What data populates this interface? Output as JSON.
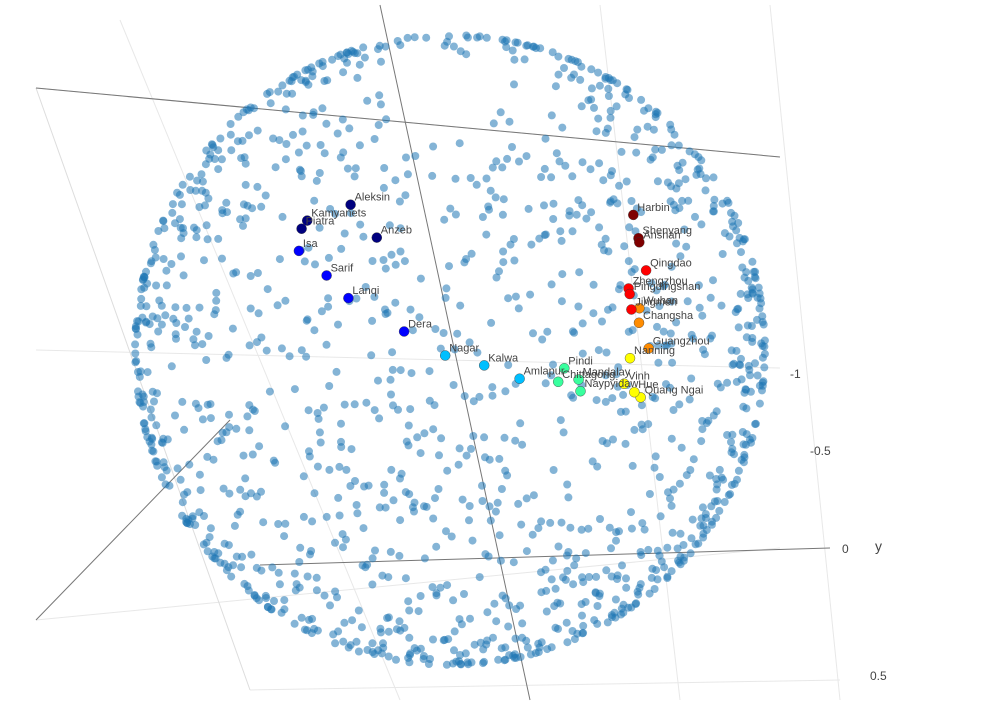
{
  "chart_data": {
    "type": "scatter",
    "title": "",
    "projection": "3d-sphere",
    "background_color": "#ffffff",
    "grid": true,
    "legend": "none",
    "axes": {
      "y": {
        "label": "y",
        "tick_labels": [
          "-1",
          "-0.5",
          "0",
          "0.5"
        ],
        "ticks": [
          -1,
          -0.5,
          0,
          0.5
        ]
      }
    },
    "series": [
      {
        "role": "world-cities",
        "color": "#1f77b4",
        "opacity": 0.55,
        "marker_size": 8
      },
      {
        "role": "route",
        "colorscale": [
          "#00007f",
          "#0000ff",
          "#00bfff",
          "#39ff9e",
          "#ffff00",
          "#ff8c00",
          "#ff0000",
          "#7f0000"
        ],
        "points": [
          {
            "name": "Kamyanets",
            "lat": 48.7,
            "lon": 26.6
          },
          {
            "name": "Piatra",
            "lat": 46.9,
            "lon": 26.4
          },
          {
            "name": "Aleksin",
            "lat": 54.5,
            "lon": 37.1
          },
          {
            "name": "Anzeb",
            "lat": 49.6,
            "lon": 49.0
          },
          {
            "name": "Isa",
            "lat": 43.0,
            "lon": 29.0
          },
          {
            "name": "Sarif",
            "lat": 40.5,
            "lon": 39.0
          },
          {
            "name": "Lanqi",
            "lat": 37.5,
            "lon": 46.0
          },
          {
            "name": "Dera",
            "lat": 33.0,
            "lon": 60.0
          },
          {
            "name": "Nagar",
            "lat": 29.0,
            "lon": 69.0
          },
          {
            "name": "Kalwa",
            "lat": 27.0,
            "lon": 77.0
          },
          {
            "name": "Amlapur",
            "lat": 24.0,
            "lon": 84.0
          },
          {
            "name": "Chittagong",
            "lat": 22.3,
            "lon": 91.8
          },
          {
            "name": "Pindi",
            "lat": 24.5,
            "lon": 93.5
          },
          {
            "name": "Mandalay",
            "lat": 21.9,
            "lon": 96.1
          },
          {
            "name": "Naypyidaw",
            "lat": 19.7,
            "lon": 96.1
          },
          {
            "name": "Quang Ngai",
            "lat": 15.1,
            "lon": 108.8
          },
          {
            "name": "Hue",
            "lat": 16.5,
            "lon": 107.6
          },
          {
            "name": "Vinh",
            "lat": 18.7,
            "lon": 105.7
          },
          {
            "name": "Nanning",
            "lat": 22.8,
            "lon": 108.3
          },
          {
            "name": "Guangzhou",
            "lat": 23.1,
            "lon": 113.3
          },
          {
            "name": "Changsha",
            "lat": 28.2,
            "lon": 112.9
          },
          {
            "name": "Wuhan",
            "lat": 30.6,
            "lon": 114.3
          },
          {
            "name": "Jingmen",
            "lat": 31.0,
            "lon": 112.2
          },
          {
            "name": "Zhengzhou",
            "lat": 34.7,
            "lon": 113.6
          },
          {
            "name": "Pingdingshan",
            "lat": 33.7,
            "lon": 113.3
          },
          {
            "name": "Qingdao",
            "lat": 36.1,
            "lon": 120.4
          },
          {
            "name": "Shenyang",
            "lat": 41.8,
            "lon": 123.4
          },
          {
            "name": "Harbin",
            "lat": 45.8,
            "lon": 126.6
          },
          {
            "name": "Anshan",
            "lat": 41.1,
            "lon": 122.9
          }
        ]
      }
    ]
  }
}
